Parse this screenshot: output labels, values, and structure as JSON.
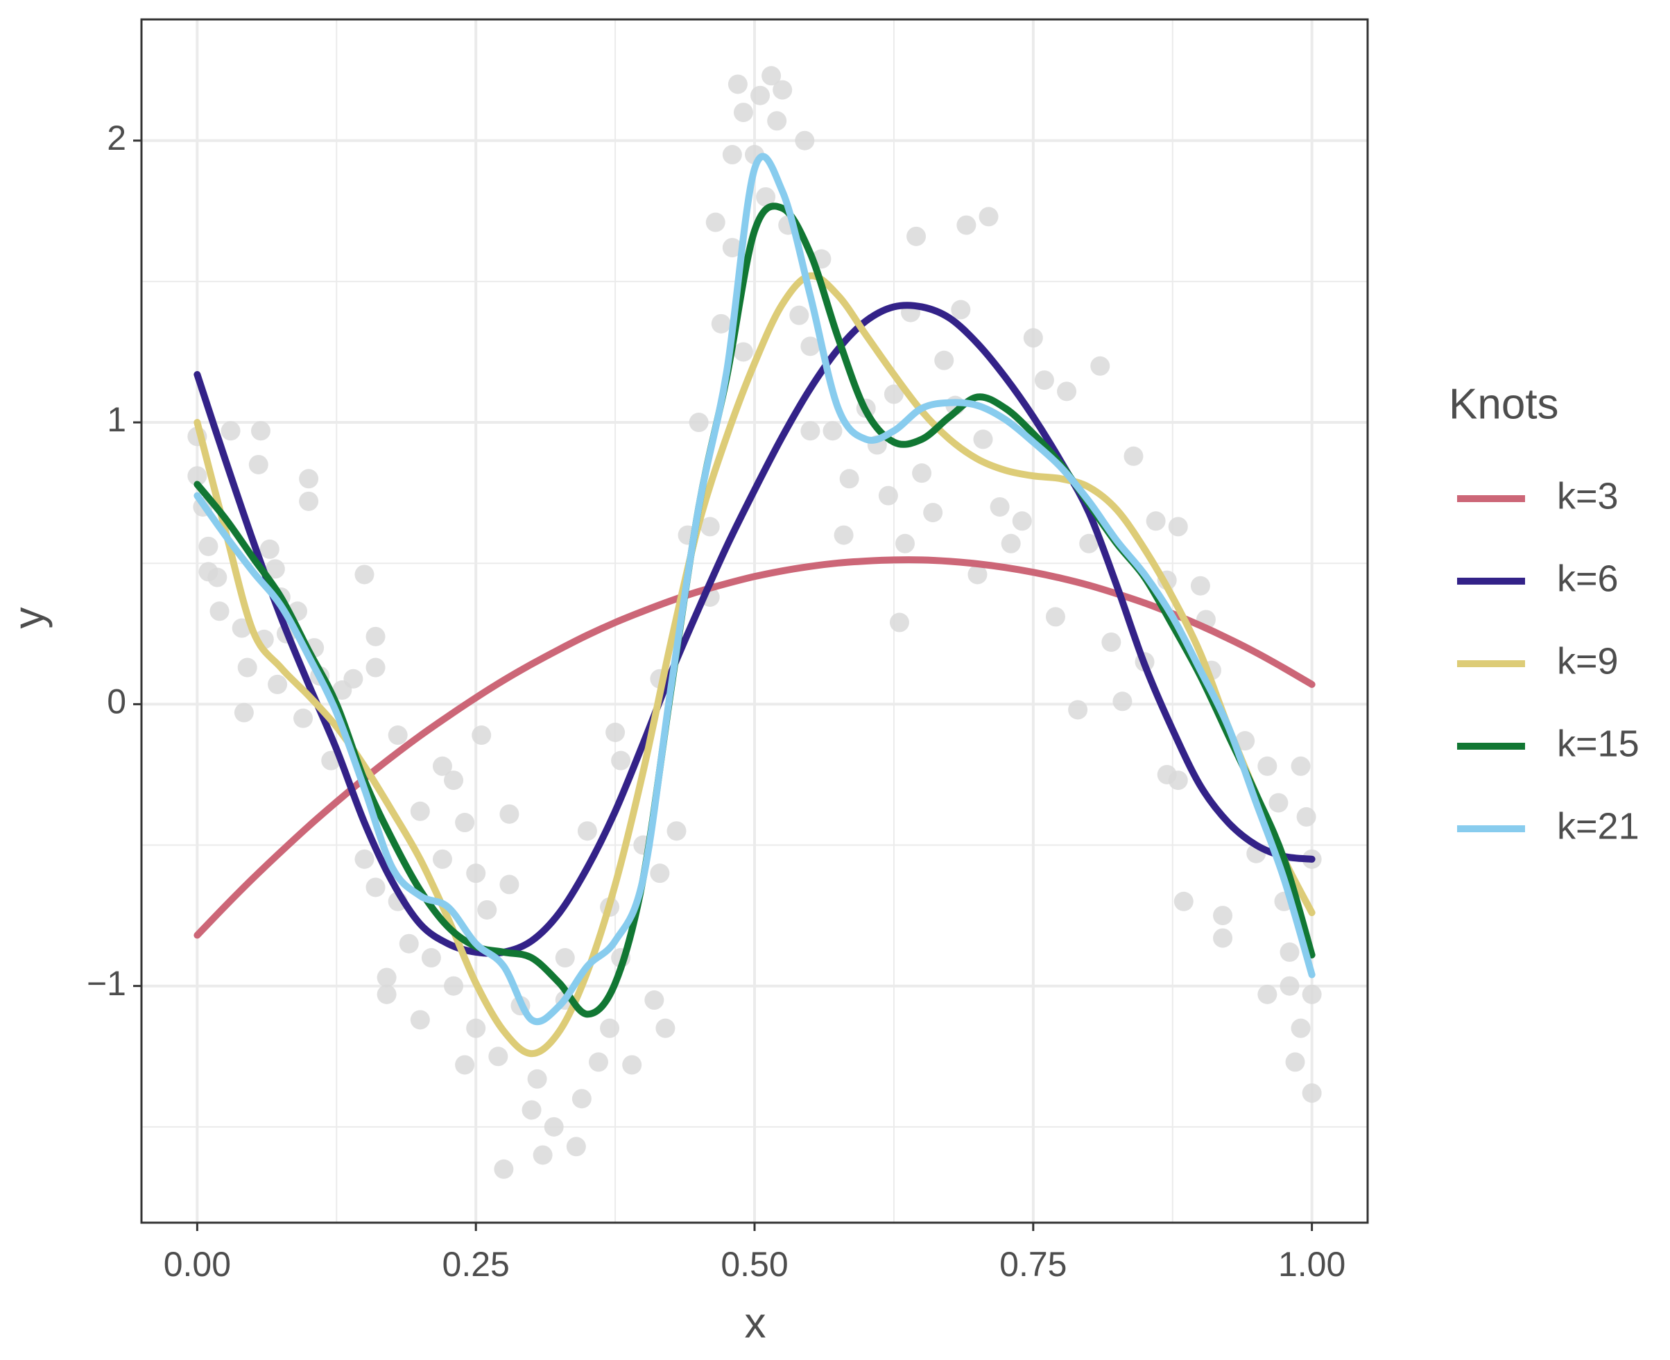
{
  "chart_data": {
    "type": "line",
    "x_label": "x",
    "y_label": "y",
    "legend_title": "Knots",
    "legend": "right",
    "grid": true,
    "xlim": [
      -0.05,
      1.05
    ],
    "ylim": [
      -1.84,
      2.43
    ],
    "xticks": [
      {
        "value": 0,
        "label": "0.00"
      },
      {
        "value": 0.25,
        "label": "0.25"
      },
      {
        "value": 0.5,
        "label": "0.50"
      },
      {
        "value": 0.75,
        "label": "0.75"
      },
      {
        "value": 1,
        "label": "1.00"
      }
    ],
    "yticks": [
      {
        "value": -1,
        "label": "−1"
      },
      0,
      1,
      2
    ],
    "xminor": [
      0.125,
      0.375,
      0.625,
      0.875
    ],
    "yminor": [
      -1.5,
      -0.5,
      0.5,
      1.5
    ],
    "points": {
      "color": "#d9d9d9",
      "x": [
        0,
        0,
        0.005,
        0.01,
        0.01,
        0.018,
        0.02,
        0.03,
        0.04,
        0.045,
        0.042,
        0.055,
        0.057,
        0.06,
        0.065,
        0.07,
        0.072,
        0.075,
        0.08,
        0.09,
        0.095,
        0.1,
        0.1,
        0.105,
        0.11,
        0.12,
        0.13,
        0.14,
        0.15,
        0.15,
        0.16,
        0.16,
        0.16,
        0.17,
        0.17,
        0.18,
        0.18,
        0.19,
        0.2,
        0.2,
        0.21,
        0.22,
        0.22,
        0.23,
        0.23,
        0.24,
        0.24,
        0.25,
        0.25,
        0.255,
        0.26,
        0.27,
        0.275,
        0.28,
        0.28,
        0.29,
        0.3,
        0.305,
        0.31,
        0.32,
        0.33,
        0.33,
        0.34,
        0.345,
        0.35,
        0.36,
        0.37,
        0.37,
        0.375,
        0.38,
        0.38,
        0.39,
        0.4,
        0.41,
        0.415,
        0.42,
        0.415,
        0.43,
        0.44,
        0.45,
        0.46,
        0.46,
        0.465,
        0.47,
        0.48,
        0.48,
        0.485,
        0.49,
        0.49,
        0.5,
        0.505,
        0.51,
        0.515,
        0.52,
        0.525,
        0.53,
        0.54,
        0.545,
        0.55,
        0.55,
        0.56,
        0.57,
        0.58,
        0.585,
        0.6,
        0.61,
        0.62,
        0.625,
        0.63,
        0.635,
        0.64,
        0.645,
        0.65,
        0.66,
        0.67,
        0.68,
        0.685,
        0.69,
        0.7,
        0.705,
        0.71,
        0.72,
        0.73,
        0.74,
        0.75,
        0.76,
        0.77,
        0.78,
        0.79,
        0.8,
        0.81,
        0.82,
        0.83,
        0.84,
        0.85,
        0.86,
        0.87,
        0.87,
        0.88,
        0.88,
        0.885,
        0.9,
        0.905,
        0.91,
        0.92,
        0.92,
        0.94,
        0.95,
        0.96,
        0.96,
        0.97,
        0.975,
        0.98,
        0.98,
        0.985,
        0.99,
        0.995,
        1,
        1,
        1,
        0.99
      ],
      "y": [
        0.95,
        0.81,
        0.7,
        0.56,
        0.47,
        0.45,
        0.33,
        0.97,
        0.27,
        0.13,
        -0.03,
        0.85,
        0.97,
        0.23,
        0.55,
        0.48,
        0.07,
        0.38,
        0.25,
        0.33,
        -0.05,
        0.8,
        0.72,
        0.2,
        0.1,
        -0.2,
        0.05,
        0.09,
        -0.55,
        0.46,
        0.24,
        0.13,
        -0.65,
        -0.97,
        -1.03,
        -0.7,
        -0.11,
        -0.85,
        -0.38,
        -1.12,
        -0.9,
        -0.22,
        -0.55,
        -1.0,
        -0.27,
        -0.42,
        -1.28,
        -0.6,
        -1.15,
        -0.11,
        -0.73,
        -1.25,
        -1.65,
        -0.39,
        -0.64,
        -1.07,
        -1.44,
        -1.33,
        -1.6,
        -1.5,
        -0.9,
        -1.05,
        -1.57,
        -1.4,
        -0.45,
        -1.27,
        -0.72,
        -1.15,
        -0.1,
        -0.2,
        -0.9,
        -1.28,
        -0.5,
        -1.05,
        -0.6,
        -1.15,
        0.09,
        -0.45,
        0.6,
        1.0,
        0.63,
        0.38,
        1.71,
        1.35,
        1.62,
        1.95,
        2.2,
        1.25,
        2.1,
        1.95,
        2.16,
        1.8,
        2.23,
        2.07,
        2.18,
        1.7,
        1.38,
        2.0,
        1.27,
        0.97,
        1.58,
        0.97,
        0.6,
        0.8,
        1.05,
        0.92,
        0.74,
        1.1,
        0.29,
        0.57,
        1.39,
        1.66,
        0.82,
        0.68,
        1.22,
        1.06,
        1.4,
        1.7,
        0.46,
        0.94,
        1.73,
        0.7,
        0.57,
        0.65,
        1.3,
        1.15,
        0.31,
        1.11,
        -0.02,
        0.57,
        1.2,
        0.22,
        0.01,
        0.88,
        0.15,
        0.65,
        -0.25,
        0.44,
        -0.27,
        0.63,
        -0.7,
        0.42,
        0.3,
        0.12,
        -0.75,
        -0.83,
        -0.13,
        -0.53,
        -0.22,
        -1.03,
        -0.35,
        -0.7,
        -0.88,
        -1.0,
        -1.27,
        -1.15,
        -0.4,
        -1.38,
        -1.03,
        -0.55,
        -0.22
      ]
    },
    "x": [
      0,
      0.025,
      0.05,
      0.075,
      0.1,
      0.125,
      0.15,
      0.175,
      0.2,
      0.225,
      0.25,
      0.275,
      0.3,
      0.325,
      0.35,
      0.375,
      0.4,
      0.425,
      0.45,
      0.475,
      0.5,
      0.525,
      0.55,
      0.575,
      0.6,
      0.625,
      0.65,
      0.675,
      0.7,
      0.725,
      0.75,
      0.775,
      0.8,
      0.825,
      0.85,
      0.875,
      0.9,
      0.925,
      0.95,
      0.975,
      1
    ],
    "series": [
      {
        "name": "k=3",
        "color": "#cc6677",
        "values": [
          -0.82,
          -0.717,
          -0.618,
          -0.524,
          -0.433,
          -0.347,
          -0.264,
          -0.186,
          -0.112,
          -0.043,
          0.023,
          0.085,
          0.142,
          0.195,
          0.245,
          0.29,
          0.33,
          0.367,
          0.4,
          0.428,
          0.453,
          0.473,
          0.489,
          0.501,
          0.508,
          0.512,
          0.512,
          0.507,
          0.498,
          0.485,
          0.468,
          0.447,
          0.422,
          0.392,
          0.359,
          0.321,
          0.279,
          0.233,
          0.183,
          0.128,
          0.07
        ]
      },
      {
        "name": "k=6",
        "color": "#332288",
        "values": [
          1.17,
          0.87,
          0.58,
          0.31,
          0.07,
          -0.16,
          -0.42,
          -0.63,
          -0.78,
          -0.85,
          -0.88,
          -0.88,
          -0.84,
          -0.74,
          -0.58,
          -0.38,
          -0.14,
          0.11,
          0.34,
          0.56,
          0.76,
          0.95,
          1.12,
          1.26,
          1.36,
          1.41,
          1.41,
          1.37,
          1.28,
          1.16,
          1.02,
          0.86,
          0.68,
          0.42,
          0.14,
          -0.09,
          -0.29,
          -0.42,
          -0.5,
          -0.54,
          -0.55
        ]
      },
      {
        "name": "k=9",
        "color": "#ddcc77",
        "values": [
          1.0,
          0.62,
          0.26,
          0.13,
          0.03,
          -0.08,
          -0.22,
          -0.38,
          -0.55,
          -0.76,
          -0.99,
          -1.16,
          -1.24,
          -1.16,
          -0.95,
          -0.64,
          -0.24,
          0.22,
          0.64,
          0.95,
          1.21,
          1.42,
          1.52,
          1.45,
          1.31,
          1.17,
          1.04,
          0.94,
          0.87,
          0.83,
          0.81,
          0.8,
          0.77,
          0.69,
          0.55,
          0.38,
          0.18,
          -0.08,
          -0.32,
          -0.55,
          -0.74
        ]
      },
      {
        "name": "k=15",
        "color": "#117733",
        "values": [
          0.78,
          0.66,
          0.52,
          0.38,
          0.19,
          0.0,
          -0.27,
          -0.48,
          -0.66,
          -0.79,
          -0.86,
          -0.88,
          -0.9,
          -0.99,
          -1.1,
          -0.99,
          -0.62,
          0.05,
          0.7,
          1.16,
          1.68,
          1.76,
          1.6,
          1.3,
          1.04,
          0.93,
          0.94,
          1.02,
          1.09,
          1.05,
          0.96,
          0.85,
          0.71,
          0.57,
          0.45,
          0.28,
          0.1,
          -0.11,
          -0.32,
          -0.55,
          -0.89
        ]
      },
      {
        "name": "k=21",
        "color": "#88ccee",
        "values": [
          0.74,
          0.6,
          0.47,
          0.35,
          0.17,
          -0.03,
          -0.3,
          -0.58,
          -0.68,
          -0.72,
          -0.85,
          -0.93,
          -1.12,
          -1.07,
          -0.93,
          -0.84,
          -0.62,
          0.06,
          0.7,
          1.18,
          1.9,
          1.82,
          1.45,
          1.05,
          0.94,
          0.97,
          1.05,
          1.07,
          1.06,
          1.01,
          0.93,
          0.84,
          0.72,
          0.58,
          0.46,
          0.31,
          0.12,
          -0.08,
          -0.35,
          -0.62,
          -0.96
        ]
      }
    ]
  }
}
